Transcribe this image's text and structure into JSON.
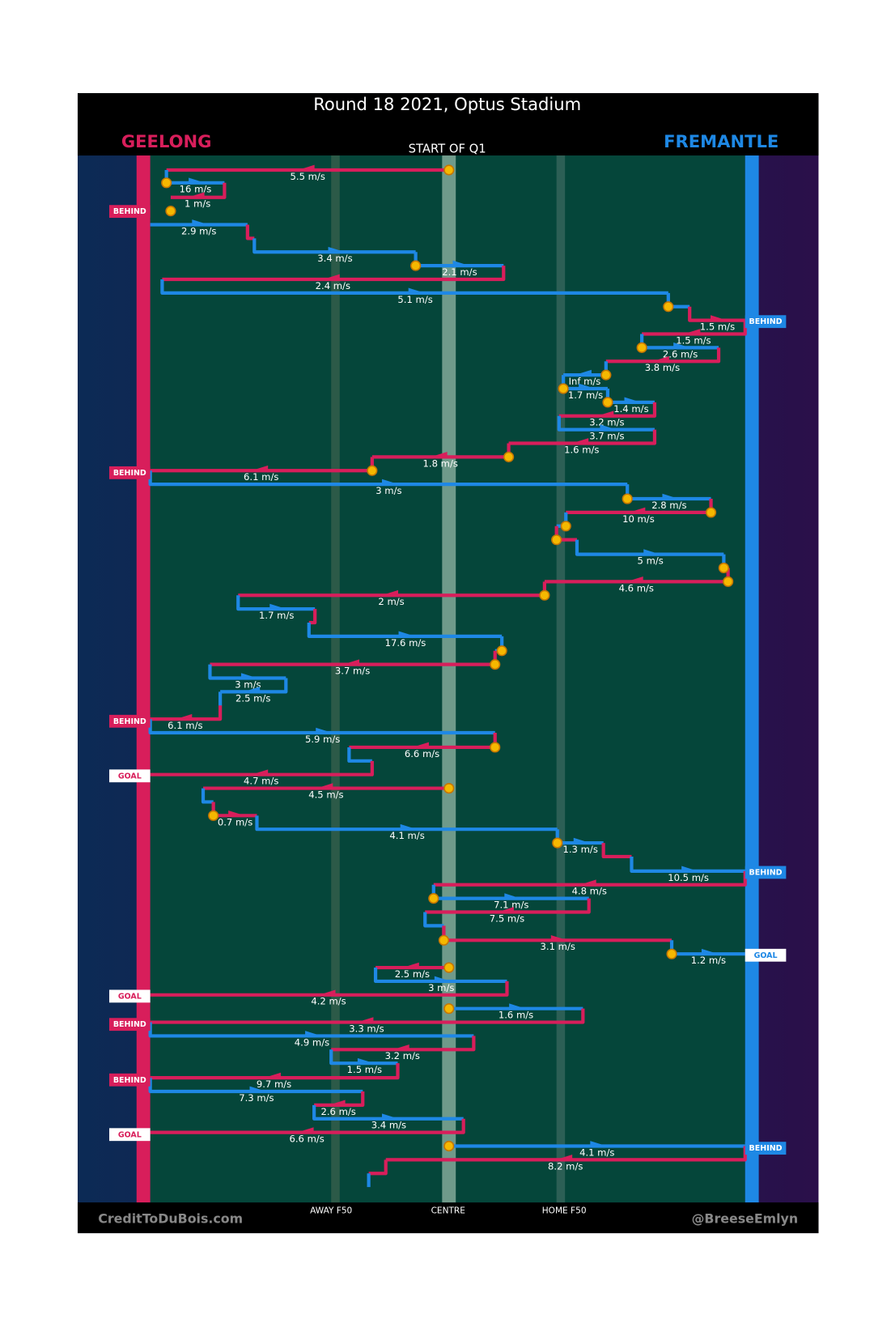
{
  "title": "Round 18 2021, Optus Stadium",
  "home_team": "GEELONG",
  "away_team": "FREMANTLE",
  "start": "START OF Q1",
  "zones": [
    "AWAY F50",
    "CENTRE",
    "HOME F50"
  ],
  "credit_left": "CreditToDuBois.com",
  "credit_right": "@BreeseEmlyn",
  "markers": [
    "BEHIND",
    "BEHIND",
    "BEHIND",
    "BEHIND",
    "GOAL",
    "BEHIND",
    "GOAL",
    "GOAL",
    "BEHIND",
    "BEHIND",
    "GOAL",
    "BEHIND"
  ],
  "speeds": [
    "5.5 m/s",
    "16 m/s",
    "1 m/s",
    "2.9 m/s",
    "3.4 m/s",
    "2.1 m/s",
    "2.4 m/s",
    "5.1 m/s",
    "1.5 m/s",
    "1.5 m/s",
    "2.6 m/s",
    "3.8 m/s",
    "Inf m/s",
    "1.7 m/s",
    "1.4 m/s",
    "3.2 m/s",
    "3.7 m/s",
    "1.6 m/s",
    "1.8 m/s",
    "6.1 m/s",
    "3 m/s",
    "2.8 m/s",
    "10 m/s",
    "5 m/s",
    "4.6 m/s",
    "2 m/s",
    "1.7 m/s",
    "17.6 m/s",
    "3.7 m/s",
    "3 m/s",
    "2.5 m/s",
    "6.1 m/s",
    "5.9 m/s",
    "6.6 m/s",
    "4.7 m/s",
    "4.5 m/s",
    "0.7 m/s",
    "4.1 m/s",
    "1.3 m/s",
    "10.5 m/s",
    "4.8 m/s",
    "7.1 m/s",
    "7.5 m/s",
    "3.1 m/s",
    "1.2 m/s",
    "2.5 m/s",
    "3 m/s",
    "4.2 m/s",
    "1.6 m/s",
    "3.3 m/s",
    "4.9 m/s",
    "3.2 m/s",
    "1.5 m/s",
    "9.7 m/s",
    "7.3 m/s",
    "2.6 m/s",
    "3.4 m/s",
    "6.6 m/s",
    "4.1 m/s",
    "8.2 m/s"
  ]
}
